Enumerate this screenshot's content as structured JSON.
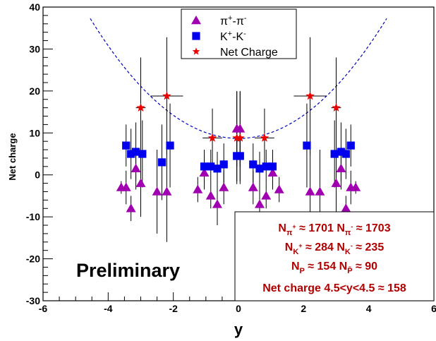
{
  "chart_data": {
    "type": "scatter",
    "xlabel": "y",
    "ylabel": "Net charge",
    "xlim": [
      -6,
      6
    ],
    "ylim": [
      -30,
      40
    ],
    "x_ticks": [
      -6,
      -4,
      -2,
      0,
      2,
      4,
      6
    ],
    "y_ticks": [
      -30,
      -20,
      -10,
      0,
      10,
      20,
      30,
      40
    ],
    "annotation": "Preliminary",
    "grid": false,
    "legend_placement": "top-center",
    "legend": [
      {
        "marker": "triangle",
        "color": "#a000b0",
        "label_base": "π",
        "label_sup1": "+",
        "label_mid": "-π",
        "label_sup2": "-"
      },
      {
        "marker": "square",
        "color": "#0000ee",
        "label_base": "K",
        "label_sup1": "+",
        "label_mid": "-K",
        "label_sup2": "-"
      },
      {
        "marker": "star",
        "color": "#ee0000",
        "label_text": "Net Charge"
      }
    ],
    "series": [
      {
        "name": "π+-π-",
        "color": "#a000b0",
        "marker": "triangle",
        "points": [
          {
            "x": -3.6,
            "y": -3,
            "err": 1.5
          },
          {
            "x": -3.45,
            "y": -3,
            "err": 4
          },
          {
            "x": -3.3,
            "y": -8,
            "err": 3
          },
          {
            "x": -3.15,
            "y": 1.5,
            "err": 5
          },
          {
            "x": -3.0,
            "y": -2,
            "err": 8
          },
          {
            "x": -2.5,
            "y": -4,
            "err": 10
          },
          {
            "x": -2.2,
            "y": -4,
            "err": 12
          },
          {
            "x": -1.25,
            "y": -3.5,
            "err": 3
          },
          {
            "x": -1.05,
            "y": 0.5,
            "err": 4
          },
          {
            "x": -0.85,
            "y": -5,
            "err": 3
          },
          {
            "x": -0.65,
            "y": -7,
            "err": 5
          },
          {
            "x": -0.45,
            "y": -3,
            "err": 4
          },
          {
            "x": -0.05,
            "y": 11,
            "err": 9
          },
          {
            "x": 0.05,
            "y": 11,
            "err": 9
          },
          {
            "x": 0.45,
            "y": -3,
            "err": 4
          },
          {
            "x": 0.65,
            "y": -7,
            "err": 5
          },
          {
            "x": 0.85,
            "y": -5,
            "err": 3
          },
          {
            "x": 1.05,
            "y": 0.5,
            "err": 4
          },
          {
            "x": 1.25,
            "y": -3.5,
            "err": 3
          },
          {
            "x": 2.2,
            "y": -4,
            "err": 12
          },
          {
            "x": 2.5,
            "y": -4,
            "err": 10
          },
          {
            "x": 3.0,
            "y": -2,
            "err": 8
          },
          {
            "x": 3.15,
            "y": 1.5,
            "err": 5
          },
          {
            "x": 3.3,
            "y": -8,
            "err": 3
          },
          {
            "x": 3.45,
            "y": -3,
            "err": 4
          },
          {
            "x": 3.6,
            "y": -3,
            "err": 1.5
          }
        ]
      },
      {
        "name": "K+-K-",
        "color": "#0000ee",
        "marker": "square",
        "points": [
          {
            "x": -3.45,
            "y": 7,
            "err": 5
          },
          {
            "x": -3.3,
            "y": 5,
            "err": 6
          },
          {
            "x": -3.15,
            "y": 5.5,
            "err": 7
          },
          {
            "x": -2.95,
            "y": 5,
            "err": 8
          },
          {
            "x": -2.35,
            "y": 3,
            "err": 9
          },
          {
            "x": -2.1,
            "y": 7,
            "err": 10
          },
          {
            "x": -1.05,
            "y": 2,
            "err": 4
          },
          {
            "x": -0.85,
            "y": 2,
            "err": 4
          },
          {
            "x": -0.65,
            "y": 1.5,
            "err": 4
          },
          {
            "x": -0.45,
            "y": 2.5,
            "err": 5
          },
          {
            "x": -0.05,
            "y": 4.5,
            "err": 6
          },
          {
            "x": 0.05,
            "y": 4.5,
            "err": 6
          },
          {
            "x": 0.45,
            "y": 2.5,
            "err": 5
          },
          {
            "x": 0.65,
            "y": 1.5,
            "err": 4
          },
          {
            "x": 0.85,
            "y": 2,
            "err": 4
          },
          {
            "x": 1.05,
            "y": 2,
            "err": 4
          },
          {
            "x": 2.1,
            "y": 7,
            "err": 10
          },
          {
            "x": 2.95,
            "y": 5,
            "err": 8
          },
          {
            "x": 3.15,
            "y": 5.5,
            "err": 7
          },
          {
            "x": 3.3,
            "y": 5,
            "err": 6
          },
          {
            "x": 3.45,
            "y": 7,
            "err": 5
          }
        ]
      },
      {
        "name": "Net Charge",
        "color": "#ee0000",
        "marker": "star",
        "points": [
          {
            "x": -3.0,
            "y": 16,
            "err": 12,
            "xerr": 0.15
          },
          {
            "x": -2.2,
            "y": 18.8,
            "err": 14,
            "xerr": 0.5
          },
          {
            "x": -0.8,
            "y": 8.8,
            "err": 7,
            "xerr": 0.3
          },
          {
            "x": -0.05,
            "y": 8.8,
            "err": 11,
            "xerr": 0.1
          },
          {
            "x": 0.05,
            "y": 8.8,
            "err": 11,
            "xerr": 0.1
          },
          {
            "x": 0.8,
            "y": 8.8,
            "err": 7,
            "xerr": 0.3
          },
          {
            "x": 2.2,
            "y": 18.8,
            "err": 14,
            "xerr": 0.5
          },
          {
            "x": 3.0,
            "y": 16,
            "err": 12,
            "xerr": 0.15
          }
        ]
      }
    ],
    "fit_curve": {
      "style": "dashed",
      "color": "#0000bb",
      "formula": "8.7 + 1.38*x^2",
      "a": 8.7,
      "b": 1.38,
      "x_range": [
        -4.55,
        4.55
      ]
    },
    "info_box": {
      "lines": [
        [
          {
            "t": "N"
          },
          {
            "sub": "π"
          },
          {
            "subsup": "+"
          },
          {
            "t": " ≈ 1701 N"
          },
          {
            "sub": "π"
          },
          {
            "subsup": "-"
          },
          {
            "t": " ≈ 1703"
          }
        ],
        [
          {
            "t": "N"
          },
          {
            "sub": "K"
          },
          {
            "subsup": "+"
          },
          {
            "t": " ≈ 284 N"
          },
          {
            "sub": "K"
          },
          {
            "subsup": "-"
          },
          {
            "t": " ≈ 235"
          }
        ],
        [
          {
            "t": "N"
          },
          {
            "sub": "P"
          },
          {
            "t": " ≈ 154 N"
          },
          {
            "sub": "P̄"
          },
          {
            "t": " ≈ 90"
          }
        ],
        [
          {
            "t": "Net charge 4.5<y<4.5  ≈ 158"
          }
        ]
      ]
    }
  }
}
